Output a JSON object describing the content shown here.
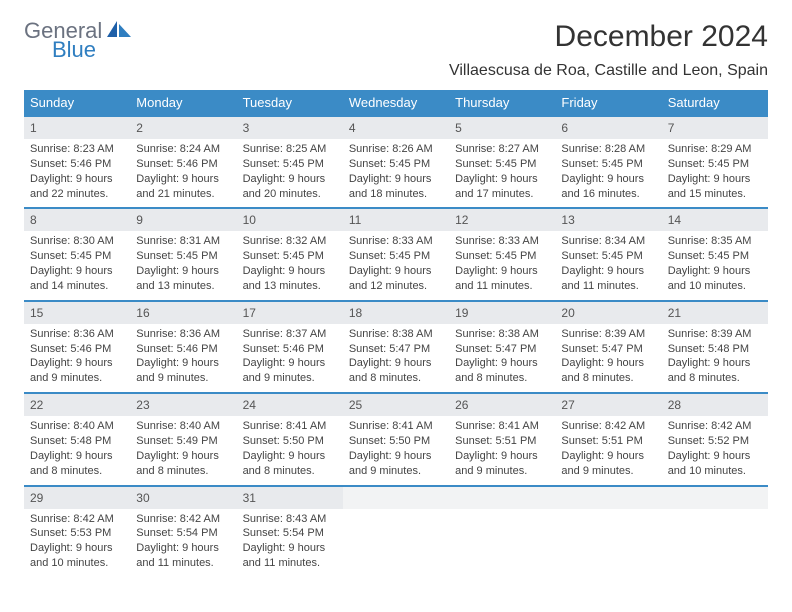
{
  "logo": {
    "text1": "General",
    "text2": "Blue"
  },
  "title": "December 2024",
  "location": "Villaescusa de Roa, Castille and Leon, Spain",
  "colors": {
    "header_bg": "#3b8bc6",
    "header_fg": "#ffffff",
    "daynum_bg": "#e8eaed",
    "rule": "#3b8bc6",
    "logo_gray": "#6b7280",
    "logo_blue": "#2f7ec0"
  },
  "weekdays": [
    "Sunday",
    "Monday",
    "Tuesday",
    "Wednesday",
    "Thursday",
    "Friday",
    "Saturday"
  ],
  "weeks": [
    [
      {
        "n": "1",
        "sunrise": "8:23 AM",
        "sunset": "5:46 PM",
        "daylight": "9 hours and 22 minutes."
      },
      {
        "n": "2",
        "sunrise": "8:24 AM",
        "sunset": "5:46 PM",
        "daylight": "9 hours and 21 minutes."
      },
      {
        "n": "3",
        "sunrise": "8:25 AM",
        "sunset": "5:45 PM",
        "daylight": "9 hours and 20 minutes."
      },
      {
        "n": "4",
        "sunrise": "8:26 AM",
        "sunset": "5:45 PM",
        "daylight": "9 hours and 18 minutes."
      },
      {
        "n": "5",
        "sunrise": "8:27 AM",
        "sunset": "5:45 PM",
        "daylight": "9 hours and 17 minutes."
      },
      {
        "n": "6",
        "sunrise": "8:28 AM",
        "sunset": "5:45 PM",
        "daylight": "9 hours and 16 minutes."
      },
      {
        "n": "7",
        "sunrise": "8:29 AM",
        "sunset": "5:45 PM",
        "daylight": "9 hours and 15 minutes."
      }
    ],
    [
      {
        "n": "8",
        "sunrise": "8:30 AM",
        "sunset": "5:45 PM",
        "daylight": "9 hours and 14 minutes."
      },
      {
        "n": "9",
        "sunrise": "8:31 AM",
        "sunset": "5:45 PM",
        "daylight": "9 hours and 13 minutes."
      },
      {
        "n": "10",
        "sunrise": "8:32 AM",
        "sunset": "5:45 PM",
        "daylight": "9 hours and 13 minutes."
      },
      {
        "n": "11",
        "sunrise": "8:33 AM",
        "sunset": "5:45 PM",
        "daylight": "9 hours and 12 minutes."
      },
      {
        "n": "12",
        "sunrise": "8:33 AM",
        "sunset": "5:45 PM",
        "daylight": "9 hours and 11 minutes."
      },
      {
        "n": "13",
        "sunrise": "8:34 AM",
        "sunset": "5:45 PM",
        "daylight": "9 hours and 11 minutes."
      },
      {
        "n": "14",
        "sunrise": "8:35 AM",
        "sunset": "5:45 PM",
        "daylight": "9 hours and 10 minutes."
      }
    ],
    [
      {
        "n": "15",
        "sunrise": "8:36 AM",
        "sunset": "5:46 PM",
        "daylight": "9 hours and 9 minutes."
      },
      {
        "n": "16",
        "sunrise": "8:36 AM",
        "sunset": "5:46 PM",
        "daylight": "9 hours and 9 minutes."
      },
      {
        "n": "17",
        "sunrise": "8:37 AM",
        "sunset": "5:46 PM",
        "daylight": "9 hours and 9 minutes."
      },
      {
        "n": "18",
        "sunrise": "8:38 AM",
        "sunset": "5:47 PM",
        "daylight": "9 hours and 8 minutes."
      },
      {
        "n": "19",
        "sunrise": "8:38 AM",
        "sunset": "5:47 PM",
        "daylight": "9 hours and 8 minutes."
      },
      {
        "n": "20",
        "sunrise": "8:39 AM",
        "sunset": "5:47 PM",
        "daylight": "9 hours and 8 minutes."
      },
      {
        "n": "21",
        "sunrise": "8:39 AM",
        "sunset": "5:48 PM",
        "daylight": "9 hours and 8 minutes."
      }
    ],
    [
      {
        "n": "22",
        "sunrise": "8:40 AM",
        "sunset": "5:48 PM",
        "daylight": "9 hours and 8 minutes."
      },
      {
        "n": "23",
        "sunrise": "8:40 AM",
        "sunset": "5:49 PM",
        "daylight": "9 hours and 8 minutes."
      },
      {
        "n": "24",
        "sunrise": "8:41 AM",
        "sunset": "5:50 PM",
        "daylight": "9 hours and 8 minutes."
      },
      {
        "n": "25",
        "sunrise": "8:41 AM",
        "sunset": "5:50 PM",
        "daylight": "9 hours and 9 minutes."
      },
      {
        "n": "26",
        "sunrise": "8:41 AM",
        "sunset": "5:51 PM",
        "daylight": "9 hours and 9 minutes."
      },
      {
        "n": "27",
        "sunrise": "8:42 AM",
        "sunset": "5:51 PM",
        "daylight": "9 hours and 9 minutes."
      },
      {
        "n": "28",
        "sunrise": "8:42 AM",
        "sunset": "5:52 PM",
        "daylight": "9 hours and 10 minutes."
      }
    ],
    [
      {
        "n": "29",
        "sunrise": "8:42 AM",
        "sunset": "5:53 PM",
        "daylight": "9 hours and 10 minutes."
      },
      {
        "n": "30",
        "sunrise": "8:42 AM",
        "sunset": "5:54 PM",
        "daylight": "9 hours and 11 minutes."
      },
      {
        "n": "31",
        "sunrise": "8:43 AM",
        "sunset": "5:54 PM",
        "daylight": "9 hours and 11 minutes."
      },
      null,
      null,
      null,
      null
    ]
  ],
  "labels": {
    "sunrise": "Sunrise:",
    "sunset": "Sunset:",
    "daylight": "Daylight:"
  }
}
